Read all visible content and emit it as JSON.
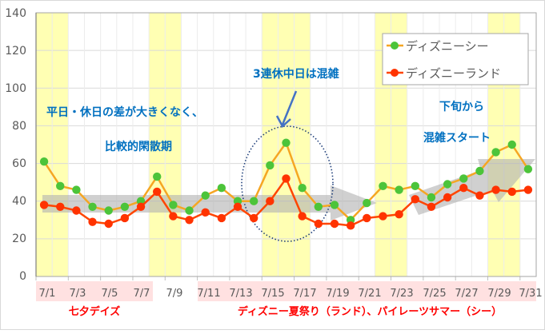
{
  "chart_data": {
    "type": "line",
    "title": "",
    "xlabel": "",
    "ylabel": "",
    "ylim": [
      0,
      140
    ],
    "yticks": [
      0,
      20,
      40,
      60,
      80,
      100,
      120,
      140
    ],
    "grid": true,
    "legend_position": "top-right (inside)",
    "categories": [
      "7/1",
      "7/2",
      "7/3",
      "7/4",
      "7/5",
      "7/6",
      "7/7",
      "7/8",
      "7/9",
      "7/10",
      "7/11",
      "7/12",
      "7/13",
      "7/14",
      "7/15",
      "7/16",
      "7/17",
      "7/18",
      "7/19",
      "7/20",
      "7/21",
      "7/22",
      "7/23",
      "7/24",
      "7/25",
      "7/26",
      "7/27",
      "7/28",
      "7/29",
      "7/30",
      "7/31"
    ],
    "xtick_labels": [
      "7/1",
      "7/3",
      "7/5",
      "7/7",
      "7/9",
      "7/11",
      "7/13",
      "7/15",
      "7/17",
      "7/19",
      "7/21",
      "7/23",
      "7/25",
      "7/27",
      "7/29",
      "7/31"
    ],
    "series": [
      {
        "name": "ディズニーシー",
        "line_color": "#f5a623",
        "marker_color": "#4cc43a",
        "values": [
          61,
          48,
          46,
          37,
          35,
          37,
          40,
          53,
          38,
          35,
          43,
          47,
          40,
          40,
          59,
          71,
          47,
          37,
          38,
          30,
          39,
          48,
          46,
          48,
          42,
          49,
          52,
          56,
          66,
          70,
          57
        ]
      },
      {
        "name": "ディズニーランド",
        "line_color": "#ff4500",
        "marker_color": "#ff3300",
        "values": [
          38,
          37,
          35,
          29,
          28,
          31,
          37,
          45,
          32,
          30,
          34,
          31,
          37,
          31,
          40,
          52,
          32,
          28,
          28,
          27,
          31,
          32,
          33,
          41,
          37,
          42,
          47,
          43,
          46,
          45,
          46
        ]
      }
    ],
    "highlighted_days": [
      [
        1,
        2
      ],
      [
        8,
        9
      ],
      [
        15,
        17
      ],
      [
        22,
        23
      ],
      [
        29,
        30
      ]
    ],
    "annotations": [
      {
        "text": "平日・休日の差が大きくなく、",
        "color": "#0070c0"
      },
      {
        "text": "比較的閑散期",
        "color": "#0070c0"
      },
      {
        "text": "3連休中日は混雑",
        "color": "#0070c0"
      },
      {
        "text": "下旬から",
        "color": "#0070c0"
      },
      {
        "text": "混雑スタート",
        "color": "#0070c0"
      }
    ],
    "event_bands": [
      {
        "label": "七夕デイズ",
        "from": "7/1",
        "to": "7/7"
      },
      {
        "label": "ディズニー夏祭り（ランド）、パイレーツサマー（シー）",
        "from": "7/11",
        "to": "7/31"
      }
    ]
  },
  "colors": {
    "weekend_band": "#ffffb3",
    "event_band": "#ffe1e1",
    "annotation": "#0070c0",
    "event_label": "#ff0000",
    "trend_arrow": "#b3b3b3",
    "ellipse": "#1f3f7a"
  },
  "yaxis": {
    "t0": "0",
    "t20": "20",
    "t40": "40",
    "t60": "60",
    "t80": "80",
    "t100": "100",
    "t120": "120",
    "t140": "140"
  },
  "xaxis": {
    "l0": "7/1",
    "l1": "7/3",
    "l2": "7/5",
    "l3": "7/7",
    "l4": "7/9",
    "l5": "7/11",
    "l6": "7/13",
    "l7": "7/15",
    "l8": "7/17",
    "l9": "7/19",
    "l10": "7/21",
    "l11": "7/23",
    "l12": "7/25",
    "l13": "7/27",
    "l14": "7/29",
    "l15": "7/31"
  },
  "legend": {
    "sea": "ディズニーシー",
    "land": "ディズニーランド"
  },
  "notes": {
    "line1": "平日・休日の差が大きくなく、",
    "line2": "比較的閑散期",
    "peak": "3連休中日は混雑",
    "late1": "下旬から",
    "late2": "混雑スタート"
  },
  "events": {
    "tanabata": "七夕デイズ",
    "summer": "ディズニー夏祭り（ランド）、パイレーツサマー（シー）"
  }
}
